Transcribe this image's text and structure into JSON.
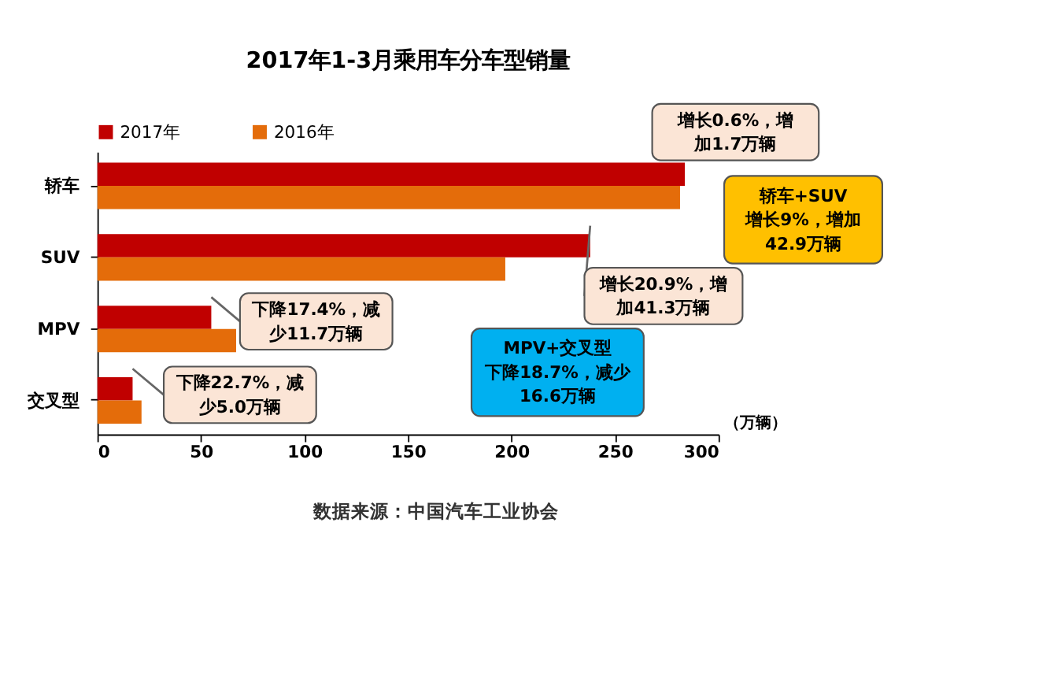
{
  "chart_data": {
    "type": "bar",
    "orientation": "horizontal",
    "title": "2017年1-3月乘用车分车型销量",
    "xlabel": "（万辆）",
    "categories": [
      "轿车",
      "SUV",
      "MPV",
      "交叉型"
    ],
    "series": [
      {
        "name": "2017年",
        "color": "#c00000",
        "values": [
          283.7,
          238,
          55,
          17
        ]
      },
      {
        "name": "2016年",
        "color": "#e46c0a",
        "values": [
          281.4,
          197,
          67,
          21.3
        ]
      }
    ],
    "xlim": [
      0,
      300
    ],
    "xticks": [
      0,
      50,
      100,
      150,
      200,
      250,
      300
    ],
    "legend": "top",
    "grid": false,
    "annotations": [
      {
        "text": "增长0.6%，增加1.7万辆",
        "x": 283.7,
        "y": "轿车"
      },
      {
        "text": "增长20.9%，增加41.3万辆",
        "x": 238,
        "y": "SUV"
      },
      {
        "text": "下降17.4%，减少11.7万辆",
        "x": 55,
        "y": "MPV"
      },
      {
        "text": "下降22.7%，减少5.0万辆",
        "x": 17,
        "y": "交叉型"
      },
      "轿车+SUV增长9%，增加42.9万辆",
      "MPV+交叉型下降18.7%，减少16.6万辆",
      "数据来源：中国汽车工业协会"
    ]
  }
}
